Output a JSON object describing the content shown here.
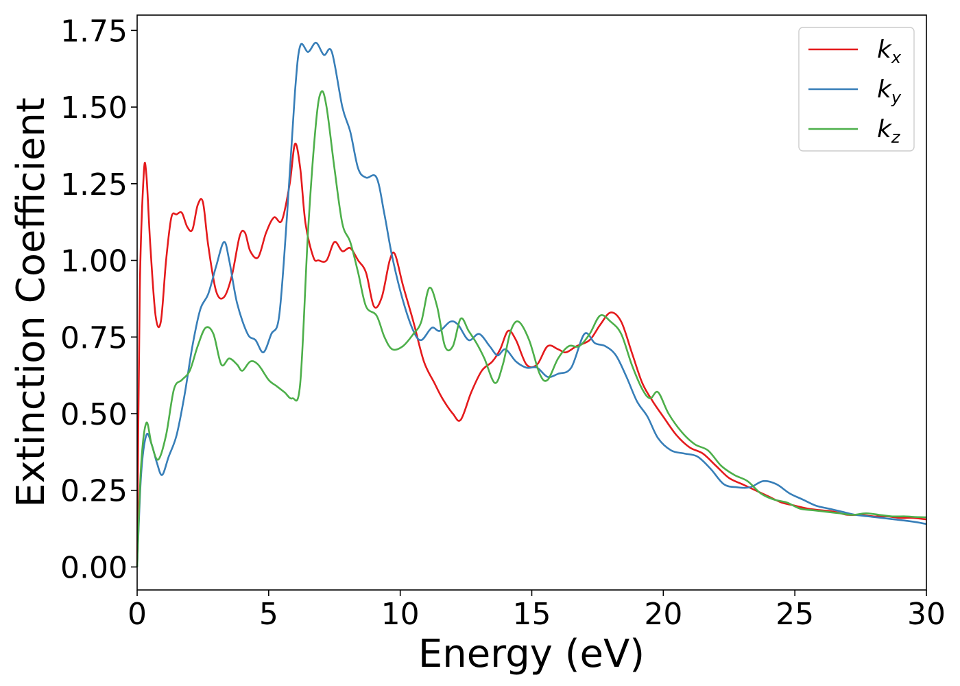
{
  "chart_data": {
    "type": "line",
    "title": "",
    "xlabel": "Energy (eV)",
    "ylabel": "Extinction Coefficient",
    "xlim": [
      0,
      30
    ],
    "ylim": [
      -0.075,
      1.8
    ],
    "xticks": [
      0,
      5,
      10,
      15,
      20,
      25,
      30
    ],
    "yticks": [
      0.0,
      0.25,
      0.5,
      0.75,
      1.0,
      1.25,
      1.5,
      1.75
    ],
    "ytick_labels": [
      "0.00",
      "0.25",
      "0.50",
      "0.75",
      "1.00",
      "1.25",
      "1.50",
      "1.75"
    ],
    "grid": false,
    "legend_position": "top-right",
    "series": [
      {
        "name": "k",
        "subscript": "x",
        "color": "#e41a1c",
        "points": [
          [
            0,
            0.0
          ],
          [
            0.1,
            0.9
          ],
          [
            0.25,
            1.28
          ],
          [
            0.35,
            1.28
          ],
          [
            0.5,
            1.05
          ],
          [
            0.7,
            0.82
          ],
          [
            0.9,
            0.8
          ],
          [
            1.1,
            1.0
          ],
          [
            1.3,
            1.14
          ],
          [
            1.5,
            1.15
          ],
          [
            1.7,
            1.155
          ],
          [
            1.9,
            1.11
          ],
          [
            2.1,
            1.1
          ],
          [
            2.3,
            1.18
          ],
          [
            2.5,
            1.19
          ],
          [
            2.7,
            1.05
          ],
          [
            3.0,
            0.9
          ],
          [
            3.3,
            0.88
          ],
          [
            3.6,
            0.95
          ],
          [
            3.9,
            1.08
          ],
          [
            4.1,
            1.09
          ],
          [
            4.3,
            1.03
          ],
          [
            4.6,
            1.01
          ],
          [
            4.9,
            1.09
          ],
          [
            5.2,
            1.14
          ],
          [
            5.5,
            1.13
          ],
          [
            5.8,
            1.25
          ],
          [
            6.0,
            1.38
          ],
          [
            6.2,
            1.3
          ],
          [
            6.4,
            1.12
          ],
          [
            6.7,
            1.01
          ],
          [
            6.9,
            1.0
          ],
          [
            7.2,
            1.0
          ],
          [
            7.5,
            1.06
          ],
          [
            7.8,
            1.03
          ],
          [
            8.1,
            1.04
          ],
          [
            8.4,
            1.0
          ],
          [
            8.7,
            0.96
          ],
          [
            9.0,
            0.85
          ],
          [
            9.3,
            0.88
          ],
          [
            9.6,
            1.0
          ],
          [
            9.8,
            1.02
          ],
          [
            10.1,
            0.92
          ],
          [
            10.5,
            0.8
          ],
          [
            10.9,
            0.67
          ],
          [
            11.3,
            0.6
          ],
          [
            11.6,
            0.55
          ],
          [
            12.0,
            0.5
          ],
          [
            12.3,
            0.48
          ],
          [
            12.7,
            0.57
          ],
          [
            13.1,
            0.64
          ],
          [
            13.5,
            0.67
          ],
          [
            13.8,
            0.71
          ],
          [
            14.1,
            0.77
          ],
          [
            14.4,
            0.74
          ],
          [
            14.8,
            0.66
          ],
          [
            15.2,
            0.66
          ],
          [
            15.6,
            0.72
          ],
          [
            16.0,
            0.71
          ],
          [
            16.3,
            0.7
          ],
          [
            16.7,
            0.72
          ],
          [
            17.2,
            0.74
          ],
          [
            17.6,
            0.79
          ],
          [
            18.0,
            0.83
          ],
          [
            18.4,
            0.8
          ],
          [
            18.8,
            0.7
          ],
          [
            19.2,
            0.6
          ],
          [
            19.6,
            0.54
          ],
          [
            20.0,
            0.49
          ],
          [
            20.5,
            0.43
          ],
          [
            21.0,
            0.39
          ],
          [
            21.5,
            0.37
          ],
          [
            22.0,
            0.33
          ],
          [
            22.5,
            0.29
          ],
          [
            23.0,
            0.27
          ],
          [
            23.5,
            0.25
          ],
          [
            24.0,
            0.23
          ],
          [
            24.5,
            0.21
          ],
          [
            25.0,
            0.2
          ],
          [
            25.5,
            0.19
          ],
          [
            26.0,
            0.185
          ],
          [
            26.5,
            0.18
          ],
          [
            27.0,
            0.17
          ],
          [
            27.5,
            0.17
          ],
          [
            28.0,
            0.165
          ],
          [
            28.5,
            0.165
          ],
          [
            29.0,
            0.16
          ],
          [
            29.5,
            0.16
          ],
          [
            30.0,
            0.155
          ]
        ]
      },
      {
        "name": "k",
        "subscript": "y",
        "color": "#377eb8",
        "points": [
          [
            0,
            0.0
          ],
          [
            0.15,
            0.3
          ],
          [
            0.35,
            0.43
          ],
          [
            0.55,
            0.4
          ],
          [
            0.75,
            0.34
          ],
          [
            0.95,
            0.3
          ],
          [
            1.2,
            0.36
          ],
          [
            1.5,
            0.43
          ],
          [
            1.8,
            0.56
          ],
          [
            2.1,
            0.72
          ],
          [
            2.4,
            0.84
          ],
          [
            2.7,
            0.89
          ],
          [
            3.0,
            0.98
          ],
          [
            3.3,
            1.06
          ],
          [
            3.5,
            1.0
          ],
          [
            3.8,
            0.86
          ],
          [
            4.2,
            0.76
          ],
          [
            4.5,
            0.74
          ],
          [
            4.8,
            0.7
          ],
          [
            5.1,
            0.76
          ],
          [
            5.4,
            0.82
          ],
          [
            5.7,
            1.15
          ],
          [
            6.0,
            1.55
          ],
          [
            6.2,
            1.7
          ],
          [
            6.5,
            1.68
          ],
          [
            6.8,
            1.71
          ],
          [
            7.1,
            1.67
          ],
          [
            7.4,
            1.68
          ],
          [
            7.8,
            1.5
          ],
          [
            8.1,
            1.42
          ],
          [
            8.4,
            1.3
          ],
          [
            8.7,
            1.27
          ],
          [
            9.1,
            1.27
          ],
          [
            9.4,
            1.15
          ],
          [
            9.7,
            1.01
          ],
          [
            10.1,
            0.87
          ],
          [
            10.5,
            0.77
          ],
          [
            10.8,
            0.74
          ],
          [
            11.2,
            0.78
          ],
          [
            11.5,
            0.77
          ],
          [
            11.9,
            0.8
          ],
          [
            12.2,
            0.79
          ],
          [
            12.6,
            0.74
          ],
          [
            13.0,
            0.76
          ],
          [
            13.4,
            0.72
          ],
          [
            13.7,
            0.69
          ],
          [
            14.0,
            0.71
          ],
          [
            14.4,
            0.67
          ],
          [
            14.8,
            0.65
          ],
          [
            15.2,
            0.65
          ],
          [
            15.6,
            0.62
          ],
          [
            16.0,
            0.63
          ],
          [
            16.5,
            0.65
          ],
          [
            17.0,
            0.76
          ],
          [
            17.4,
            0.73
          ],
          [
            17.8,
            0.72
          ],
          [
            18.2,
            0.69
          ],
          [
            18.6,
            0.62
          ],
          [
            19.0,
            0.54
          ],
          [
            19.4,
            0.49
          ],
          [
            19.8,
            0.42
          ],
          [
            20.3,
            0.38
          ],
          [
            20.8,
            0.37
          ],
          [
            21.3,
            0.36
          ],
          [
            21.8,
            0.32
          ],
          [
            22.3,
            0.27
          ],
          [
            22.8,
            0.26
          ],
          [
            23.3,
            0.26
          ],
          [
            23.8,
            0.28
          ],
          [
            24.3,
            0.27
          ],
          [
            24.8,
            0.24
          ],
          [
            25.3,
            0.22
          ],
          [
            25.8,
            0.2
          ],
          [
            26.3,
            0.19
          ],
          [
            26.8,
            0.18
          ],
          [
            27.3,
            0.17
          ],
          [
            27.8,
            0.165
          ],
          [
            28.3,
            0.16
          ],
          [
            28.8,
            0.155
          ],
          [
            29.3,
            0.15
          ],
          [
            29.7,
            0.145
          ],
          [
            30.0,
            0.14
          ]
        ]
      },
      {
        "name": "k",
        "subscript": "z",
        "color": "#4daf4a",
        "points": [
          [
            0,
            0.0
          ],
          [
            0.15,
            0.33
          ],
          [
            0.35,
            0.47
          ],
          [
            0.55,
            0.4
          ],
          [
            0.8,
            0.35
          ],
          [
            1.1,
            0.43
          ],
          [
            1.4,
            0.58
          ],
          [
            1.7,
            0.61
          ],
          [
            2.0,
            0.64
          ],
          [
            2.3,
            0.72
          ],
          [
            2.6,
            0.78
          ],
          [
            2.9,
            0.76
          ],
          [
            3.2,
            0.66
          ],
          [
            3.5,
            0.68
          ],
          [
            3.8,
            0.66
          ],
          [
            4.0,
            0.64
          ],
          [
            4.3,
            0.67
          ],
          [
            4.6,
            0.66
          ],
          [
            5.0,
            0.61
          ],
          [
            5.3,
            0.59
          ],
          [
            5.6,
            0.57
          ],
          [
            5.9,
            0.55
          ],
          [
            6.2,
            0.6
          ],
          [
            6.5,
            1.1
          ],
          [
            6.8,
            1.45
          ],
          [
            7.0,
            1.55
          ],
          [
            7.2,
            1.5
          ],
          [
            7.5,
            1.3
          ],
          [
            7.8,
            1.12
          ],
          [
            8.1,
            1.06
          ],
          [
            8.4,
            0.96
          ],
          [
            8.7,
            0.85
          ],
          [
            9.1,
            0.82
          ],
          [
            9.4,
            0.75
          ],
          [
            9.7,
            0.71
          ],
          [
            10.1,
            0.72
          ],
          [
            10.5,
            0.76
          ],
          [
            10.8,
            0.8
          ],
          [
            11.1,
            0.91
          ],
          [
            11.4,
            0.85
          ],
          [
            11.7,
            0.72
          ],
          [
            12.0,
            0.72
          ],
          [
            12.3,
            0.81
          ],
          [
            12.6,
            0.77
          ],
          [
            12.9,
            0.73
          ],
          [
            13.2,
            0.68
          ],
          [
            13.6,
            0.6
          ],
          [
            13.9,
            0.66
          ],
          [
            14.2,
            0.77
          ],
          [
            14.5,
            0.8
          ],
          [
            14.9,
            0.74
          ],
          [
            15.3,
            0.63
          ],
          [
            15.6,
            0.61
          ],
          [
            16.0,
            0.68
          ],
          [
            16.4,
            0.72
          ],
          [
            16.8,
            0.72
          ],
          [
            17.2,
            0.76
          ],
          [
            17.6,
            0.82
          ],
          [
            18.0,
            0.8
          ],
          [
            18.4,
            0.76
          ],
          [
            18.8,
            0.66
          ],
          [
            19.2,
            0.58
          ],
          [
            19.5,
            0.55
          ],
          [
            19.8,
            0.57
          ],
          [
            20.2,
            0.5
          ],
          [
            20.7,
            0.44
          ],
          [
            21.2,
            0.4
          ],
          [
            21.7,
            0.38
          ],
          [
            22.2,
            0.33
          ],
          [
            22.7,
            0.3
          ],
          [
            23.2,
            0.28
          ],
          [
            23.7,
            0.24
          ],
          [
            24.2,
            0.22
          ],
          [
            24.7,
            0.21
          ],
          [
            25.2,
            0.19
          ],
          [
            25.7,
            0.185
          ],
          [
            26.2,
            0.18
          ],
          [
            26.7,
            0.175
          ],
          [
            27.2,
            0.17
          ],
          [
            27.7,
            0.175
          ],
          [
            28.2,
            0.17
          ],
          [
            28.7,
            0.165
          ],
          [
            29.2,
            0.165
          ],
          [
            29.6,
            0.163
          ],
          [
            30.0,
            0.162
          ]
        ]
      }
    ]
  }
}
